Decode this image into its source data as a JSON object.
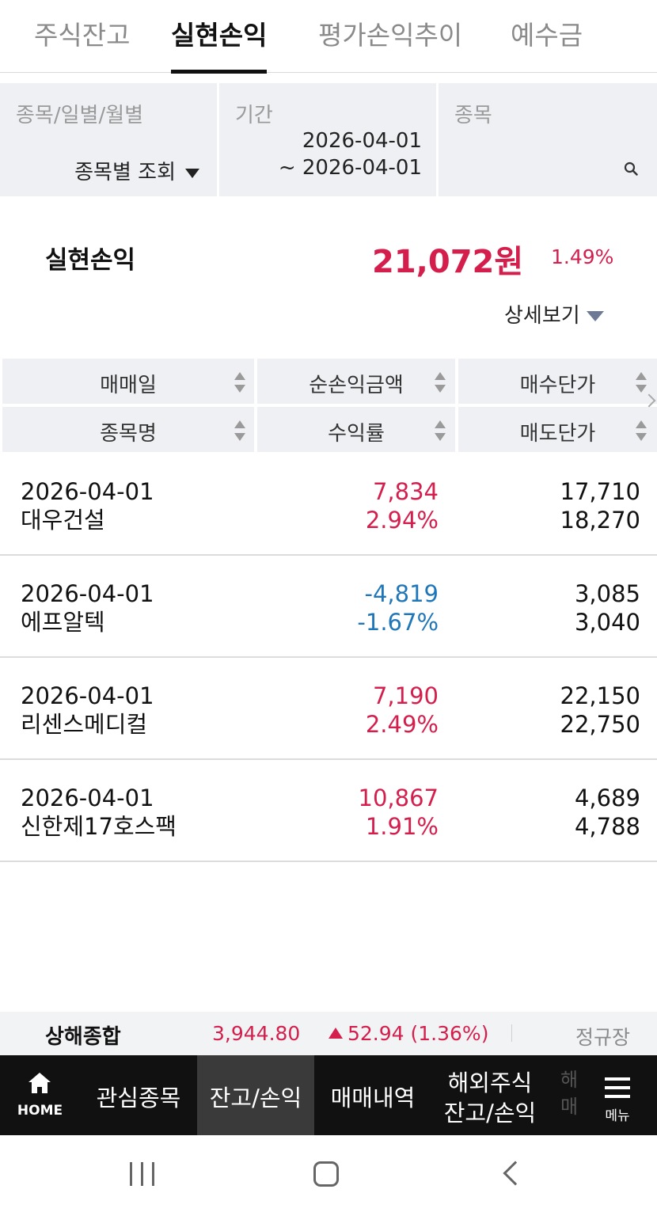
{
  "tabs": [
    {
      "label": "주식잔고"
    },
    {
      "label": "실현손익"
    },
    {
      "label": "평가손익추이"
    },
    {
      "label": "예수금"
    }
  ],
  "filter": {
    "type_label": "종목/일별/월별",
    "type_value": "종목별 조회",
    "period_label": "기간",
    "period_from": "2026-04-01",
    "period_to": "~ 2026-04-01",
    "stock_label": "종목"
  },
  "summary": {
    "label": "실현손익",
    "amount": "21,072원",
    "percent": "1.49%",
    "detail_label": "상세보기"
  },
  "table": {
    "headers": {
      "trade_date": "매매일",
      "net_pnl": "순손익금액",
      "buy_price": "매수단가",
      "stock_name": "종목명",
      "return_rate": "수익률",
      "sell_price": "매도단가"
    },
    "rows": [
      {
        "date": "2026-04-01",
        "name": "대우건설",
        "pnl": "7,834",
        "rate": "2.94%",
        "buy": "17,710",
        "sell": "18,270",
        "sign": "pos"
      },
      {
        "date": "2026-04-01",
        "name": "에프알텍",
        "pnl": "-4,819",
        "rate": "-1.67%",
        "buy": "3,085",
        "sell": "3,040",
        "sign": "neg"
      },
      {
        "date": "2026-04-01",
        "name": "리센스메디컬",
        "pnl": "7,190",
        "rate": "2.49%",
        "buy": "22,150",
        "sell": "22,750",
        "sign": "pos"
      },
      {
        "date": "2026-04-01",
        "name": "신한제17호스팩",
        "pnl": "10,867",
        "rate": "1.91%",
        "buy": "4,689",
        "sell": "4,788",
        "sign": "pos"
      }
    ]
  },
  "ticker": {
    "name": "상해종합",
    "value": "3,944.80",
    "change": "52.94 (1.36%)",
    "session": "정규장"
  },
  "bottom_nav": {
    "home": "HOME",
    "items": [
      {
        "label": "관심종목"
      },
      {
        "label": "잔고/손익"
      },
      {
        "label": "매매내역"
      },
      {
        "label_line1": "해외주식",
        "label_line2": "잔고/손익"
      }
    ],
    "faded": "해매",
    "menu": "메뉴"
  },
  "colors": {
    "positive": "#d41f4d",
    "negative": "#1f76b8",
    "nav_bg": "#111111",
    "panel_bg": "#eef0f3"
  }
}
